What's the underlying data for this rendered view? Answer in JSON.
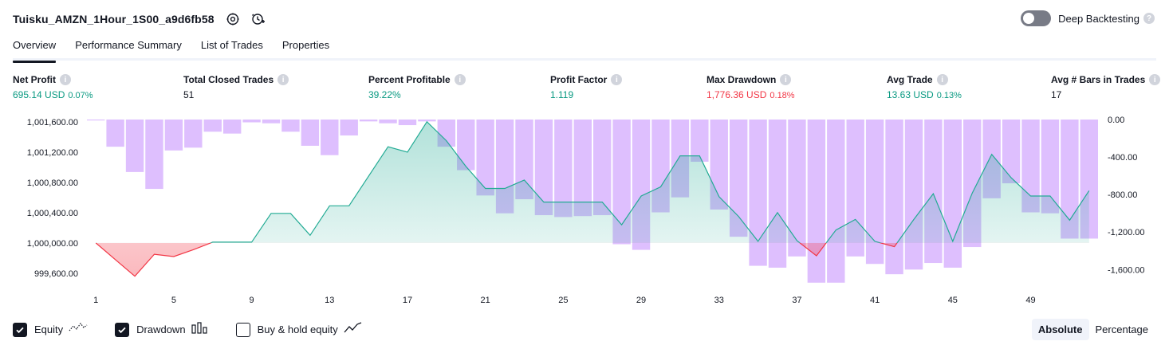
{
  "header": {
    "strategy_name": "Tuisku_AMZN_1Hour_1S00_a9d6fb58",
    "deep_backtesting_label": "Deep Backtesting",
    "deep_backtesting_on": false,
    "icons": [
      "settings-icon",
      "strategy-replay-icon"
    ]
  },
  "tabs": [
    {
      "label": "Overview",
      "active": true
    },
    {
      "label": "Performance Summary",
      "active": false
    },
    {
      "label": "List of Trades",
      "active": false
    },
    {
      "label": "Properties",
      "active": false
    }
  ],
  "metrics": {
    "net_profit": {
      "label": "Net Profit",
      "value": "695.14 USD",
      "pct": "0.07%"
    },
    "closed_trades": {
      "label": "Total Closed Trades",
      "value": "51"
    },
    "percent_profitable": {
      "label": "Percent Profitable",
      "value": "39.22%"
    },
    "profit_factor": {
      "label": "Profit Factor",
      "value": "1.119"
    },
    "max_drawdown": {
      "label": "Max Drawdown",
      "value": "1,776.36 USD",
      "pct": "0.18%"
    },
    "avg_trade": {
      "label": "Avg Trade",
      "value": "13.63 USD",
      "pct": "0.13%"
    },
    "avg_bars": {
      "label": "Avg # Bars in Trades",
      "value": "17"
    }
  },
  "legend": {
    "equity": {
      "label": "Equity",
      "checked": true
    },
    "drawdown": {
      "label": "Drawdown",
      "checked": true
    },
    "buy_hold": {
      "label": "Buy & hold equity",
      "checked": false
    }
  },
  "mode": {
    "absolute": "Absolute",
    "percentage": "Percentage",
    "active": "absolute"
  },
  "colors": {
    "profit": "#089981",
    "loss": "#f23645",
    "equity_line": "#22ab94",
    "drawdown_bar": "#d8b4fe"
  },
  "chart_data": {
    "type": "area",
    "x_ticks": [
      "1",
      "5",
      "9",
      "13",
      "17",
      "21",
      "25",
      "29",
      "33",
      "37",
      "41",
      "45",
      "49"
    ],
    "y_left_ticks": [
      "1,001,600.00",
      "1,001,200.00",
      "1,000,800.00",
      "1,000,400.00",
      "1,000,000.00",
      "999,600.00"
    ],
    "y_right_ticks": [
      "0.00",
      "-400.00",
      "-800.00",
      "-1,200.00",
      "-1,600.00"
    ],
    "y_left_range": [
      999430,
      1001630
    ],
    "y_right_range": [
      -1776,
      0
    ],
    "baseline": 1000000,
    "equity": {
      "x": [
        1,
        2,
        3,
        4,
        5,
        6,
        7,
        8,
        9,
        10,
        11,
        12,
        13,
        14,
        15,
        16,
        17,
        18,
        19,
        20,
        21,
        22,
        23,
        24,
        25,
        26,
        27,
        28,
        29,
        30,
        31,
        32,
        33,
        34,
        35,
        36,
        37,
        38,
        39,
        40,
        41,
        42,
        43,
        44,
        45,
        46,
        47,
        48,
        49,
        50,
        51,
        52
      ],
      "values": [
        1000000,
        999780,
        999560,
        999850,
        999820,
        999910,
        1000010,
        1000010,
        1000010,
        1000390,
        1000390,
        1000100,
        1000490,
        1000490,
        1000880,
        1001270,
        1001200,
        1001600,
        1001350,
        1001010,
        1000720,
        1000720,
        1000830,
        1000540,
        1000540,
        1000540,
        1000540,
        1000240,
        1000620,
        1000740,
        1001150,
        1001150,
        1000610,
        1000350,
        1000020,
        1000400,
        1000030,
        999830,
        1000170,
        1000310,
        1000020,
        999950,
        1000310,
        1000650,
        1000020,
        1000660,
        1001170,
        1000860,
        1000620,
        1000620,
        1000300,
        1000690
      ]
    },
    "drawdown": {
      "x": [
        1,
        2,
        3,
        4,
        5,
        6,
        7,
        8,
        9,
        10,
        11,
        12,
        13,
        14,
        15,
        16,
        17,
        18,
        19,
        20,
        21,
        22,
        23,
        24,
        25,
        26,
        27,
        28,
        29,
        30,
        31,
        32,
        33,
        34,
        35,
        36,
        37,
        38,
        39,
        40,
        41,
        42,
        43,
        44,
        45,
        46,
        47,
        48,
        49,
        50,
        51,
        52
      ],
      "values": [
        -10,
        -290,
        -560,
        -740,
        -330,
        -300,
        -130,
        -150,
        -30,
        -40,
        -130,
        -280,
        -380,
        -170,
        -20,
        -40,
        -60,
        -20,
        -290,
        -540,
        -810,
        -1000,
        -850,
        -1020,
        -1040,
        -1030,
        -1020,
        -1330,
        -1390,
        -990,
        -830,
        -450,
        -960,
        -1250,
        -1560,
        -1580,
        -1460,
        -1740,
        -1740,
        -1460,
        -1540,
        -1650,
        -1600,
        -1530,
        -1580,
        -1360,
        -840,
        -680,
        -990,
        -1000,
        -1270,
        -1270
      ]
    }
  }
}
